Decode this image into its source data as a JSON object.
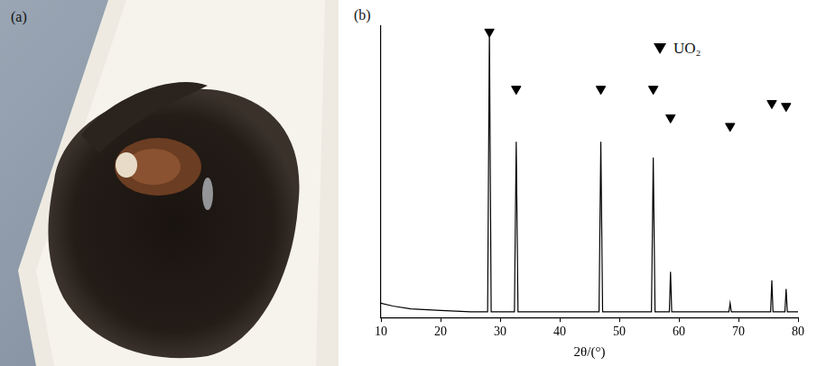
{
  "panel_a": {
    "label": "(a)"
  },
  "chart_data": {
    "type": "line",
    "panel_label": "(b)",
    "x_label": "2θ/(°)",
    "xlim": [
      10,
      80
    ],
    "xticks": [
      10,
      20,
      30,
      40,
      50,
      60,
      70,
      80
    ],
    "ylim": [
      0,
      102
    ],
    "tick_labels": "x",
    "grid": false,
    "legend": "top right",
    "series": [
      {
        "color": "#000000",
        "line_style": "solid",
        "x": [
          10,
          12,
          15,
          20,
          25,
          27.9,
          28.2,
          28.5,
          32.4,
          32.7,
          33.0,
          46.6,
          46.9,
          47.2,
          55.4,
          55.7,
          56.0,
          58.4,
          58.6,
          58.8,
          68.4,
          68.6,
          68.8,
          75.4,
          75.6,
          75.8,
          77.8,
          78.0,
          78.2,
          80
        ],
        "values": [
          5,
          4,
          3,
          2.5,
          2,
          2,
          101,
          2,
          2,
          61.5,
          2,
          2,
          61.5,
          2,
          2,
          56,
          2,
          2,
          16,
          2,
          2,
          5,
          2,
          2,
          13,
          2,
          2,
          10,
          2,
          2
        ]
      },
      {
        "name": "UO₂",
        "type": "scatter",
        "marker": "triangle_down",
        "color": "#000000",
        "x": [
          28.2,
          32.7,
          46.9,
          55.7,
          58.6,
          68.6,
          75.6,
          78.0
        ],
        "values": [
          100,
          80,
          80,
          80,
          70,
          67,
          75,
          74
        ]
      }
    ]
  }
}
